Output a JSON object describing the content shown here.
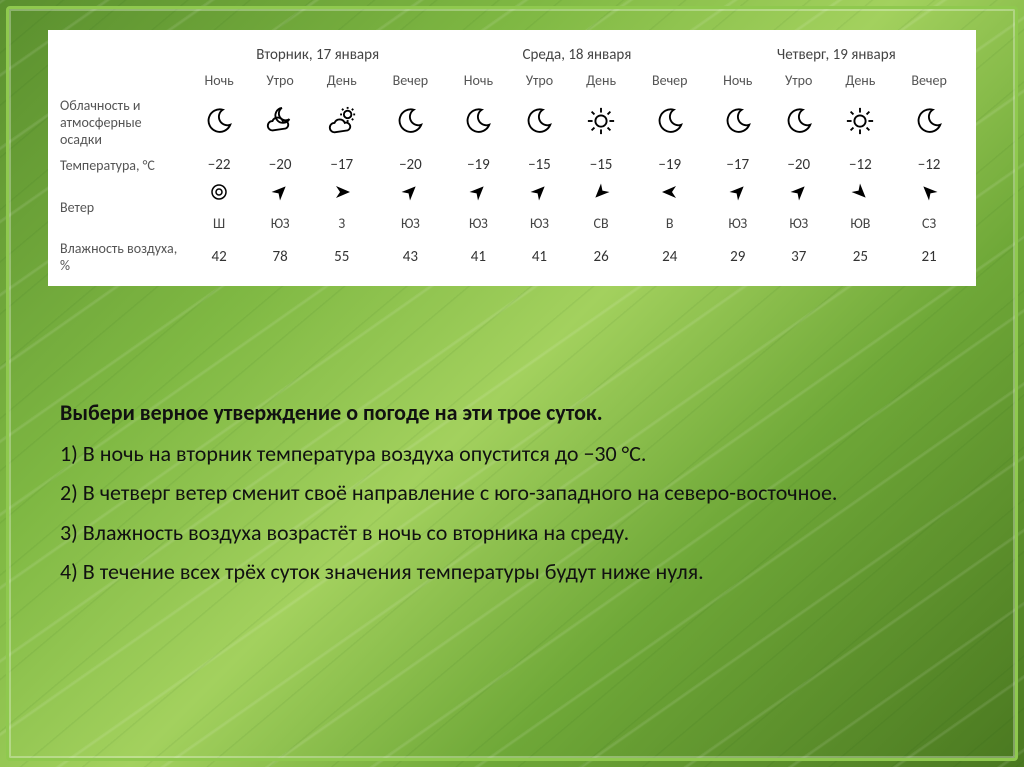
{
  "colors": {
    "panel_bg": "#ffffff",
    "text": "#333333",
    "border": "#8fc94e"
  },
  "days": [
    {
      "label": "Вторник, 17 января"
    },
    {
      "label": "Среда, 18 января"
    },
    {
      "label": "Четверг, 19 января"
    }
  ],
  "day_parts": [
    "Ночь",
    "Утро",
    "День",
    "Вечер",
    "Ночь",
    "Утро",
    "День",
    "Вечер",
    "Ночь",
    "Утро",
    "День",
    "Вечер"
  ],
  "rows": {
    "conditions_label": "Облачность и атмосферные осадки",
    "temperature_label": "Температура, °С",
    "wind_label": "Ветер",
    "humidity_label": "Влажность воздуха, %"
  },
  "conditions": [
    "moon",
    "cloud-moon",
    "cloud-sun",
    "moon",
    "moon",
    "moon",
    "sun",
    "moon",
    "moon",
    "moon",
    "sun",
    "moon"
  ],
  "temperature": [
    "−22",
    "−20",
    "−17",
    "−20",
    "−19",
    "−15",
    "−15",
    "−19",
    "−17",
    "−20",
    "−12",
    "−12"
  ],
  "wind_icons": [
    "calm",
    "arrow",
    "arrow2",
    "arrow",
    "arrow",
    "arrow",
    "arrow3",
    "arrowL",
    "arrow",
    "arrow",
    "arrow3",
    "arrowNW"
  ],
  "wind_angles": [
    0,
    45,
    90,
    45,
    45,
    45,
    225,
    270,
    45,
    45,
    135,
    315
  ],
  "wind_dirs": [
    "Ш",
    "ЮЗ",
    "З",
    "ЮЗ",
    "ЮЗ",
    "ЮЗ",
    "СВ",
    "В",
    "ЮЗ",
    "ЮЗ",
    "ЮВ",
    "СЗ"
  ],
  "humidity": [
    "42",
    "78",
    "55",
    "43",
    "41",
    "41",
    "26",
    "24",
    "29",
    "37",
    "25",
    "21"
  ],
  "question": {
    "prompt": "Выбери верное утверждение о погоде на эти трое суток.",
    "opt1": "1) В ночь на вторник температура воздуха опустится до −30 °С.",
    "opt2": "2) В четверг ветер сменит своё направление с юго-западного на северо-восточное.",
    "opt3": "3) Влажность воздуха возрастёт в ночь со вторника на среду.",
    "opt4": "4) В течение всех трёх суток значения температуры будут ниже нуля."
  }
}
